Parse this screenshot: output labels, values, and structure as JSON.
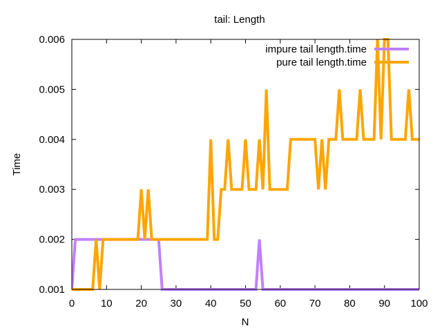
{
  "chart_data": {
    "type": "line",
    "title": "tail: Length",
    "xlabel": "N",
    "ylabel": "Time",
    "xlim": [
      0,
      100
    ],
    "ylim": [
      0.001,
      0.006
    ],
    "x_ticks": [
      0,
      10,
      20,
      30,
      40,
      50,
      60,
      70,
      80,
      90,
      100
    ],
    "x_tick_labels": [
      "0",
      "10",
      "20",
      "30",
      "40",
      "50",
      "60",
      "70",
      "80",
      "90",
      "100"
    ],
    "y_ticks": [
      0.001,
      0.002,
      0.003,
      0.004,
      0.005,
      0.006
    ],
    "y_tick_labels": [
      "0.001",
      "0.002",
      "0.003",
      "0.004",
      "0.005",
      "0.006"
    ],
    "legend_position": "top-right",
    "grid": false,
    "series": [
      {
        "name": "impure tail length.time",
        "color": "#c080ff",
        "x": [
          0,
          1,
          2,
          3,
          4,
          5,
          6,
          7,
          8,
          9,
          10,
          11,
          12,
          13,
          14,
          15,
          16,
          17,
          18,
          19,
          20,
          21,
          22,
          23,
          24,
          25,
          26,
          27,
          28,
          29,
          30,
          31,
          32,
          33,
          34,
          35,
          36,
          37,
          38,
          39,
          40,
          41,
          42,
          43,
          44,
          45,
          46,
          47,
          48,
          49,
          50,
          51,
          52,
          53,
          54,
          55,
          56,
          57,
          58,
          59,
          60,
          61,
          62,
          63,
          64,
          65,
          66,
          67,
          68,
          69,
          70,
          71,
          72,
          73,
          74,
          75,
          76,
          77,
          78,
          79,
          80,
          81,
          82,
          83,
          84,
          85,
          86,
          87,
          88,
          89,
          90,
          91,
          92,
          93,
          94,
          95,
          96,
          97,
          98,
          99,
          100
        ],
        "values": [
          0.001,
          0.002,
          0.002,
          0.002,
          0.002,
          0.002,
          0.002,
          0.002,
          0.002,
          0.002,
          0.002,
          0.002,
          0.002,
          0.002,
          0.002,
          0.002,
          0.002,
          0.002,
          0.002,
          0.002,
          0.002,
          0.002,
          0.002,
          0.002,
          0.002,
          0.002,
          0.001,
          0.001,
          0.001,
          0.001,
          0.001,
          0.001,
          0.001,
          0.001,
          0.001,
          0.001,
          0.001,
          0.001,
          0.001,
          0.001,
          0.001,
          0.001,
          0.001,
          0.001,
          0.001,
          0.001,
          0.001,
          0.001,
          0.001,
          0.001,
          0.001,
          0.001,
          0.001,
          0.001,
          0.002,
          0.001,
          0.001,
          0.001,
          0.001,
          0.001,
          0.001,
          0.001,
          0.001,
          0.001,
          0.001,
          0.001,
          0.001,
          0.001,
          0.001,
          0.001,
          0.001,
          0.001,
          0.001,
          0.001,
          0.001,
          0.001,
          0.001,
          0.001,
          0.001,
          0.001,
          0.001,
          0.001,
          0.001,
          0.001,
          0.001,
          0.001,
          0.001,
          0.001,
          0.001,
          0.001,
          0.001,
          0.001,
          0.001,
          0.001,
          0.001,
          0.001,
          0.001,
          0.001,
          0.001,
          0.001,
          0.001
        ]
      },
      {
        "name": "pure tail length.time",
        "color": "#ffa500",
        "x": [
          0,
          1,
          2,
          3,
          4,
          5,
          6,
          7,
          8,
          9,
          10,
          11,
          12,
          13,
          14,
          15,
          16,
          17,
          18,
          19,
          20,
          21,
          22,
          23,
          24,
          25,
          26,
          27,
          28,
          29,
          30,
          31,
          32,
          33,
          34,
          35,
          36,
          37,
          38,
          39,
          40,
          41,
          42,
          43,
          44,
          45,
          46,
          47,
          48,
          49,
          50,
          51,
          52,
          53,
          54,
          55,
          56,
          57,
          58,
          59,
          60,
          61,
          62,
          63,
          64,
          65,
          66,
          67,
          68,
          69,
          70,
          71,
          72,
          73,
          74,
          75,
          76,
          77,
          78,
          79,
          80,
          81,
          82,
          83,
          84,
          85,
          86,
          87,
          88,
          89,
          90,
          91,
          92,
          93,
          94,
          95,
          96,
          97,
          98,
          99,
          100
        ],
        "values": [
          0.001,
          0.001,
          0.001,
          0.001,
          0.001,
          0.001,
          0.001,
          0.002,
          0.001,
          0.002,
          0.002,
          0.002,
          0.002,
          0.002,
          0.002,
          0.002,
          0.002,
          0.002,
          0.002,
          0.002,
          0.003,
          0.002,
          0.003,
          0.002,
          0.002,
          0.002,
          0.002,
          0.002,
          0.002,
          0.002,
          0.002,
          0.002,
          0.002,
          0.002,
          0.002,
          0.002,
          0.002,
          0.002,
          0.002,
          0.002,
          0.004,
          0.002,
          0.002,
          0.003,
          0.003,
          0.004,
          0.003,
          0.003,
          0.003,
          0.003,
          0.004,
          0.003,
          0.003,
          0.003,
          0.004,
          0.003,
          0.005,
          0.003,
          0.003,
          0.003,
          0.003,
          0.003,
          0.003,
          0.004,
          0.004,
          0.004,
          0.004,
          0.004,
          0.004,
          0.004,
          0.004,
          0.003,
          0.004,
          0.003,
          0.004,
          0.004,
          0.004,
          0.005,
          0.004,
          0.004,
          0.004,
          0.004,
          0.004,
          0.005,
          0.004,
          0.004,
          0.004,
          0.004,
          0.006,
          0.004,
          0.006,
          0.006,
          0.004,
          0.004,
          0.004,
          0.004,
          0.004,
          0.005,
          0.004,
          0.004,
          0.004
        ]
      }
    ]
  }
}
